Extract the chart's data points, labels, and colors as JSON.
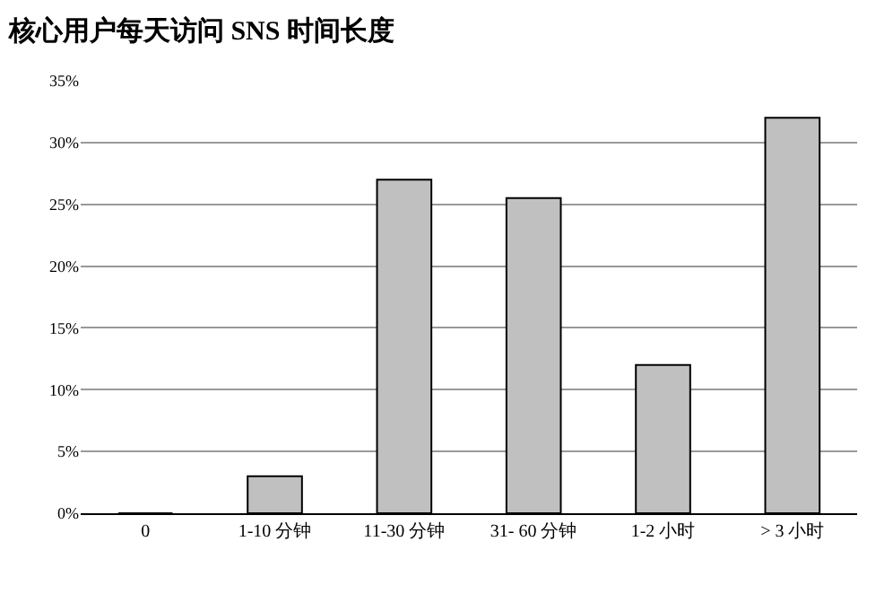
{
  "chart_data": {
    "type": "bar",
    "title": "核心用户每天访问 SNS 时间长度",
    "categories": [
      "0",
      "1-10 分钟",
      "11-30 分钟",
      "31- 60 分钟",
      "1-2 小时",
      "> 3 小时"
    ],
    "values": [
      0,
      3,
      27,
      25.5,
      12,
      32
    ],
    "color": "#c0c0c0",
    "ylim": [
      0,
      35
    ],
    "yticks": [
      {
        "value": 0,
        "label": "0%"
      },
      {
        "value": 5,
        "label": "5%"
      },
      {
        "value": 10,
        "label": "10%"
      },
      {
        "value": 15,
        "label": "15%"
      },
      {
        "value": 20,
        "label": "20%"
      },
      {
        "value": 25,
        "label": "25%"
      },
      {
        "value": 30,
        "label": "30%"
      },
      {
        "value": 35,
        "label": "35%"
      }
    ],
    "grid": "y"
  }
}
